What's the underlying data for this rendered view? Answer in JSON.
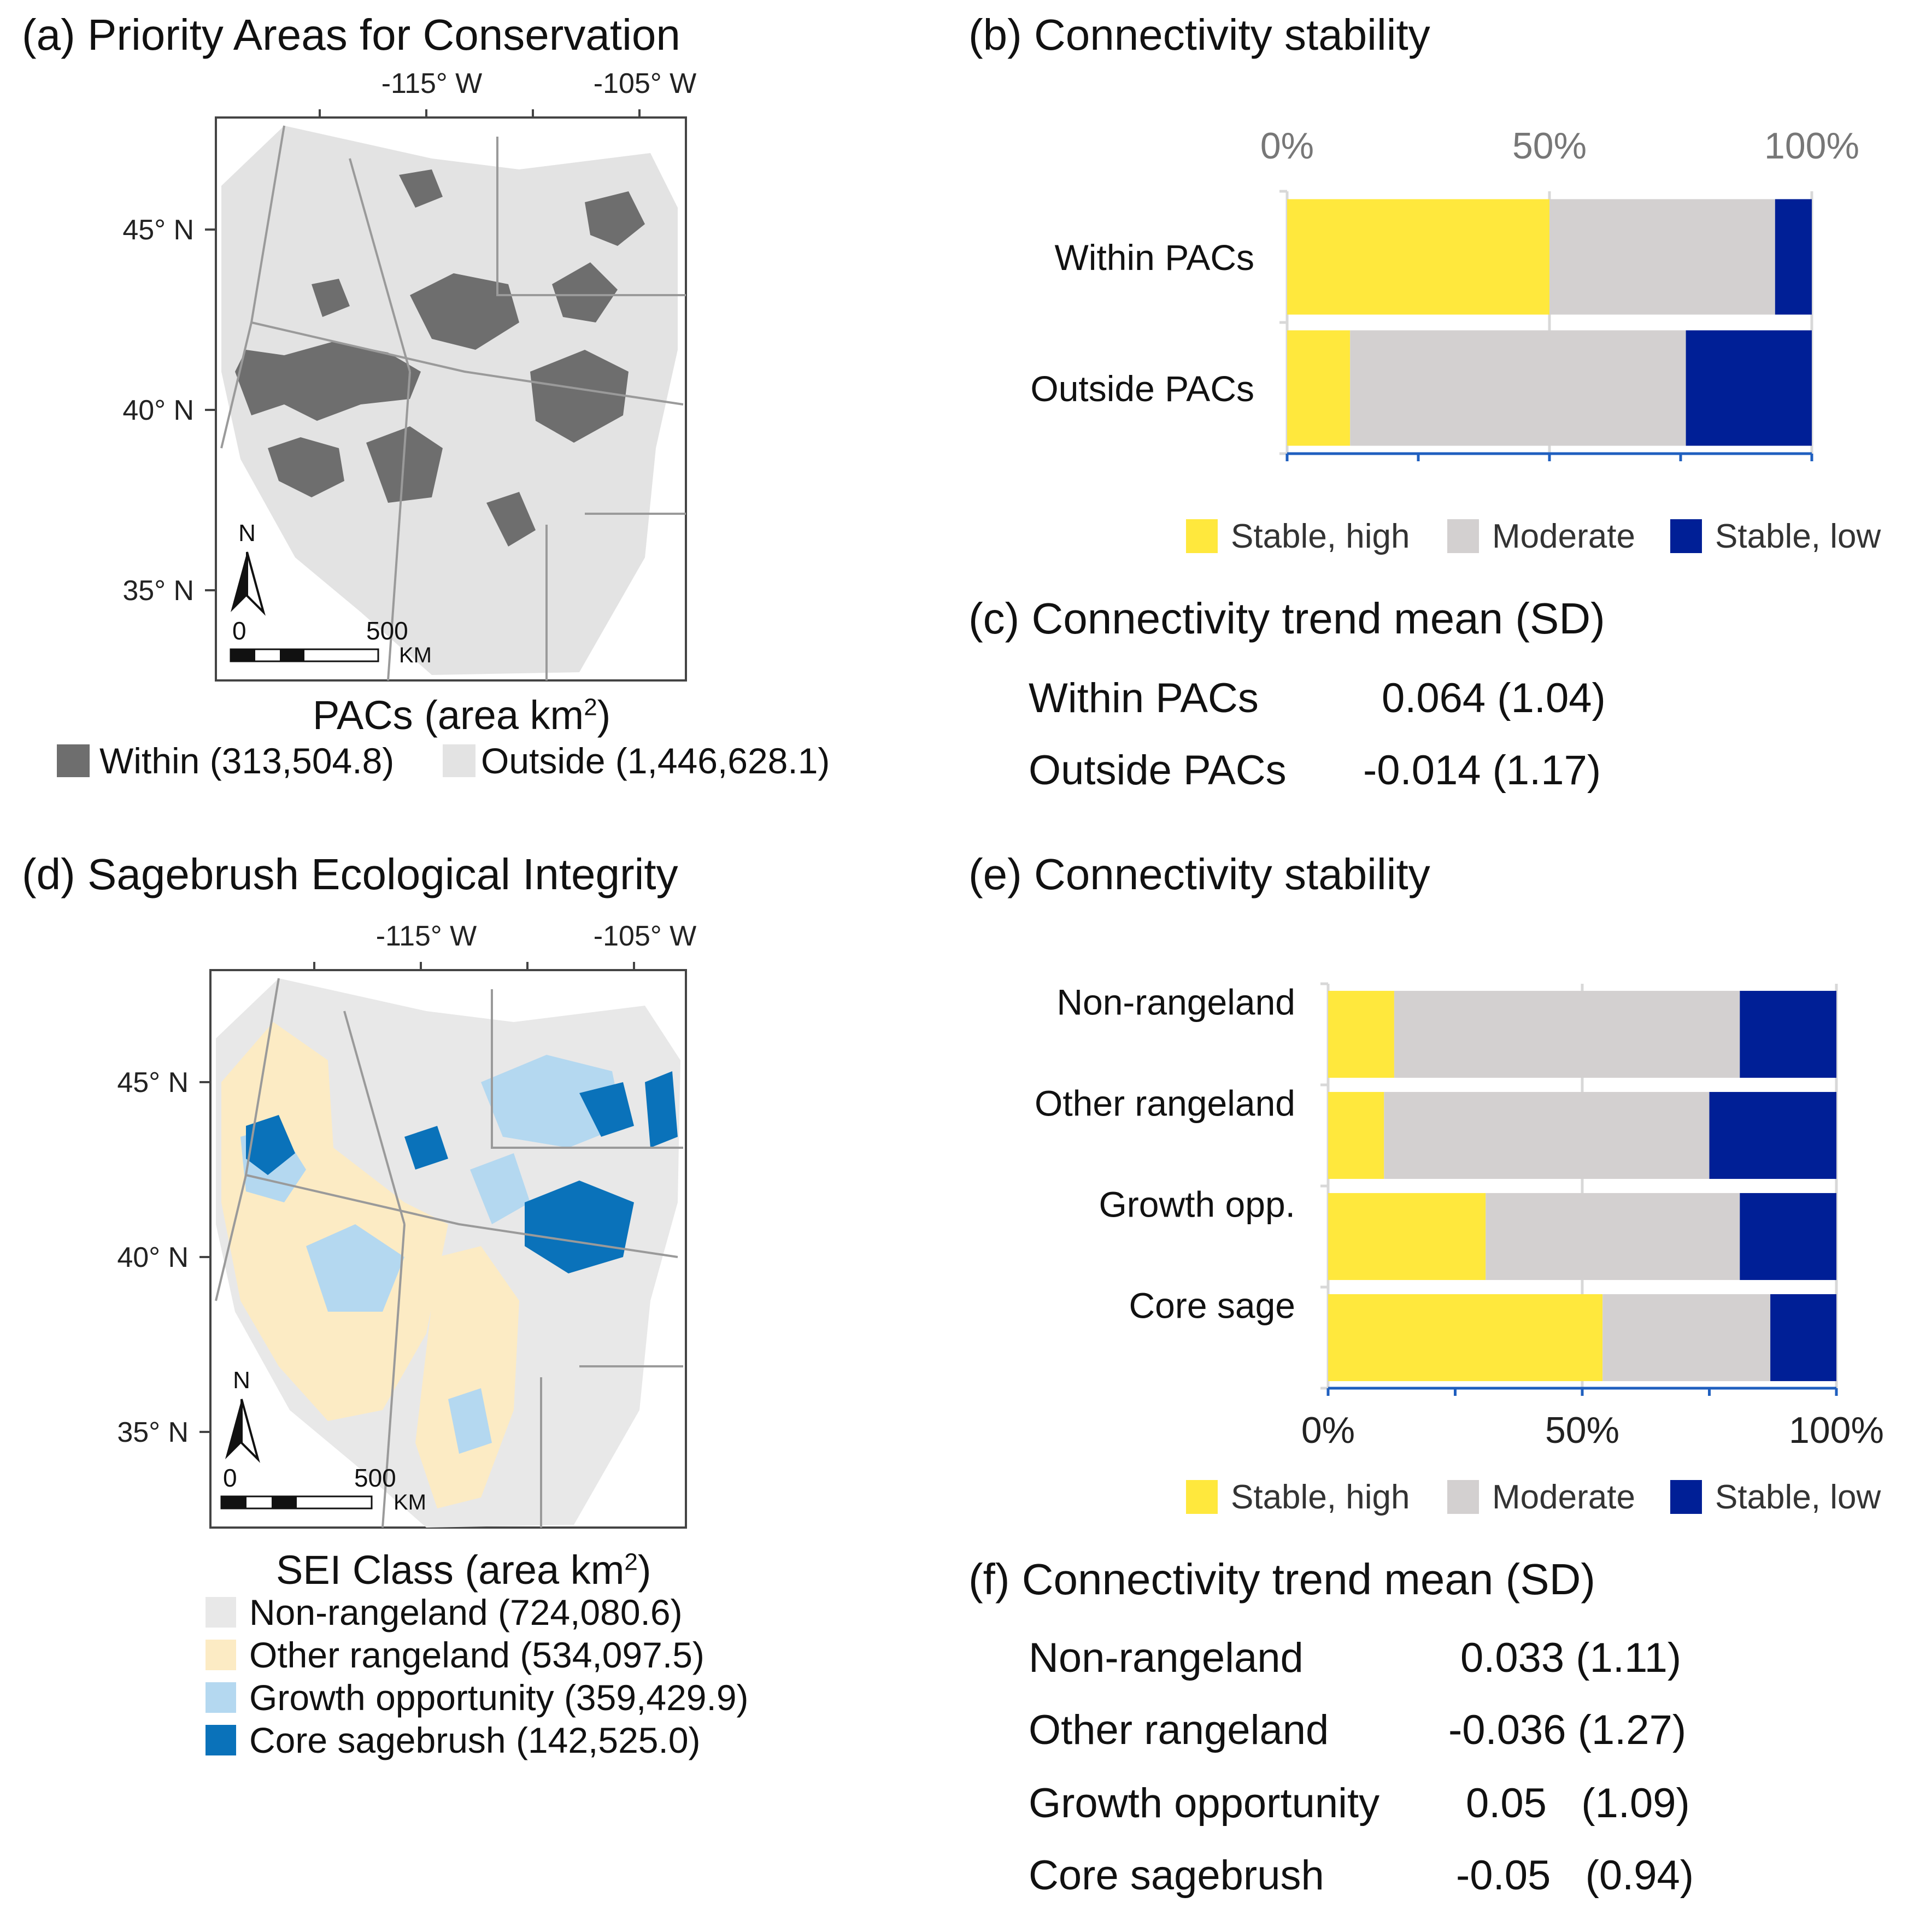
{
  "colors": {
    "stable_high": "#FFE83D",
    "moderate": "#D3D0D0",
    "stable_low": "#001F96",
    "pac_within": "#6E6E6E",
    "pac_outside": "#E3E3E3",
    "non_rangeland": "#E8E8E8",
    "other_rangeland": "#FCEBC4",
    "growth_opportunity": "#B4D8F0",
    "core_sagebrush": "#0A72BA",
    "axis_blue": "#1F5FBF"
  },
  "panel_a": {
    "title": "(a) Priority Areas for Conservation",
    "lon_labels": [
      "-115° W",
      "-105° W"
    ],
    "lat_labels": [
      "45° N",
      "40° N",
      "35° N"
    ],
    "north": "N",
    "scale_zero": "0",
    "scale_max": "500",
    "scale_unit": "KM",
    "legend_title": "PACs (area km",
    "legend_title_sup": "2",
    "legend_title_close": ")",
    "legend": [
      {
        "label": "Within (313,504.8)",
        "color": "#6E6E6E"
      },
      {
        "label": "Outside (1,446,628.1)",
        "color": "#E3E3E3"
      }
    ]
  },
  "panel_d": {
    "title": "(d) Sagebrush Ecological Integrity",
    "lon_labels": [
      "-115° W",
      "-105° W"
    ],
    "lat_labels": [
      "45° N",
      "40° N",
      "35° N"
    ],
    "north": "N",
    "scale_zero": "0",
    "scale_max": "500",
    "scale_unit": "KM",
    "legend_title": "SEI Class (area km",
    "legend_title_sup": "2",
    "legend_title_close": ")",
    "legend": [
      {
        "label": "Non-rangeland (724,080.6)",
        "color": "#E8E8E8"
      },
      {
        "label": "Other rangeland (534,097.5)",
        "color": "#FCEBC4"
      },
      {
        "label": "Growth opportunity (359,429.9)",
        "color": "#B4D8F0"
      },
      {
        "label": "Core sagebrush (142,525.0)",
        "color": "#0A72BA"
      }
    ]
  },
  "panel_b": {
    "title": "(b) Connectivity stability"
  },
  "panel_c": {
    "title": "(c) Connectivity trend mean (SD)",
    "rows": [
      {
        "label": "Within PACs",
        "value": "0.064 (1.04)"
      },
      {
        "label": "Outside PACs",
        "value": "-0.014 (1.17)"
      }
    ]
  },
  "panel_e": {
    "title": "(e) Connectivity stability"
  },
  "panel_f": {
    "title": "(f) Connectivity trend mean (SD)",
    "rows": [
      {
        "label": "Non-rangeland",
        "value": "0.033 (1.11)"
      },
      {
        "label": "Other rangeland",
        "value": "-0.036 (1.27)"
      },
      {
        "label": "Growth opportunity",
        "value": "0.05   (1.09)"
      },
      {
        "label": "Core sagebrush",
        "value": "-0.05   (0.94)"
      }
    ]
  },
  "stability_legend": [
    "Stable, high",
    "Moderate",
    "Stable, low"
  ],
  "chart_data": [
    {
      "type": "bar",
      "orientation": "horizontal",
      "stacked": true,
      "title": "(b) Connectivity stability",
      "categories": [
        "Within PACs",
        "Outside PACs"
      ],
      "series": [
        {
          "name": "Stable, high",
          "values": [
            50,
            12
          ]
        },
        {
          "name": "Moderate",
          "values": [
            43,
            64
          ]
        },
        {
          "name": "Stable, low",
          "values": [
            7,
            24
          ]
        }
      ],
      "xlim": [
        0,
        100
      ],
      "xticks": [
        "0%",
        "50%",
        "100%"
      ],
      "xaxis_position": "top",
      "legend": "bottom"
    },
    {
      "type": "bar",
      "orientation": "horizontal",
      "stacked": true,
      "title": "(e) Connectivity stability",
      "categories": [
        "Non-rangeland",
        "Other rangeland",
        "Growth opp.",
        "Core sage"
      ],
      "series": [
        {
          "name": "Stable, high",
          "values": [
            13,
            11,
            31,
            54
          ]
        },
        {
          "name": "Moderate",
          "values": [
            68,
            64,
            50,
            33
          ]
        },
        {
          "name": "Stable, low",
          "values": [
            19,
            25,
            19,
            13
          ]
        }
      ],
      "xlim": [
        0,
        100
      ],
      "xticks": [
        "0%",
        "50%",
        "100%"
      ],
      "xaxis_position": "bottom",
      "legend": "bottom"
    }
  ]
}
